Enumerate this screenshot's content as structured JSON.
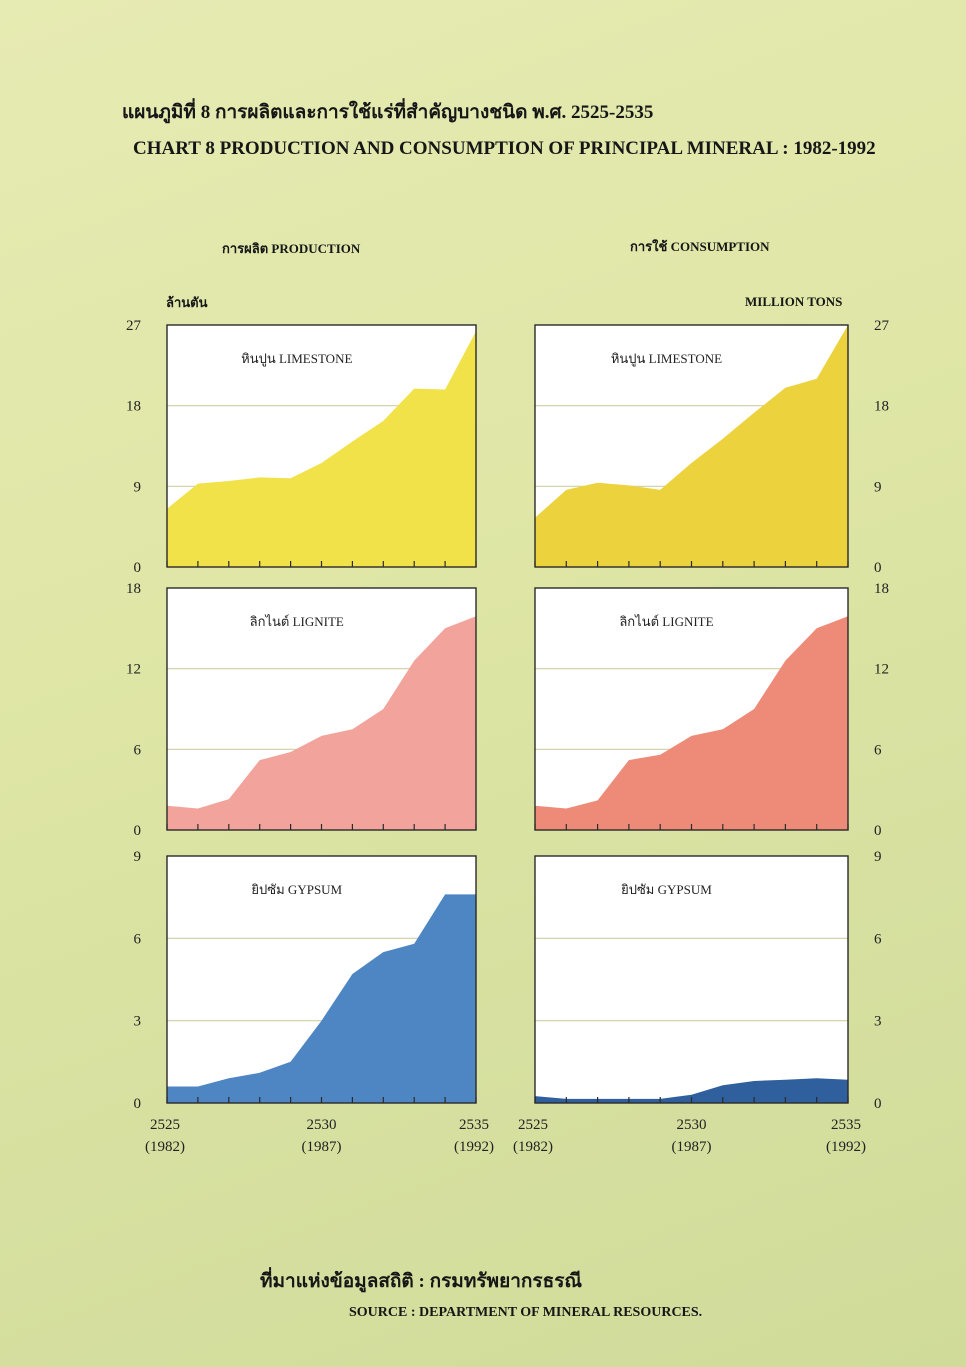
{
  "title_th": "แผนภูมิที่  8  การผลิตและการใช้แร่ที่สำคัญบางชนิด พ.ศ. 2525-2535",
  "title_en": "CHART  8  PRODUCTION AND CONSUMPTION OF PRINCIPAL MINERAL : 1982-1992",
  "production_header": "การผลิต PRODUCTION",
  "consumption_header": "การใช้ CONSUMPTION",
  "unit_th": "ล้านตัน",
  "unit_en": "MILLION TONS",
  "source_th": "ที่มาแห่งข้อมูลสถิติ : กรมทรัพยากรธรณี",
  "source_en": "SOURCE  :  DEPARTMENT OF MINERAL RESOURCES.",
  "colors": {
    "limestone_production": "#f2e24a",
    "limestone_consumption": "#ecd23c",
    "lignite_production": "#f2a49c",
    "lignite_consumption": "#ee8a78",
    "gypsum_production": "#4e86c4",
    "gypsum_consumption": "#2f5f9c",
    "gridline": "#cfd0a4"
  },
  "chart_data": [
    {
      "type": "area",
      "panel": "production",
      "x": [
        2525,
        2526,
        2527,
        2528,
        2529,
        2530,
        2531,
        2532,
        2533,
        2534,
        2535
      ],
      "values": [
        6.5,
        9.3,
        9.6,
        10.0,
        9.9,
        11.6,
        14.0,
        16.3,
        19.9,
        19.8,
        26.3
      ],
      "label": "หินปูน LIMESTONE",
      "ylim": [
        0,
        27
      ],
      "yticks": [
        0,
        9,
        18,
        27
      ],
      "xticklabels": [
        [
          "2525",
          "(1982)"
        ],
        [
          "2530",
          "(1987)"
        ],
        [
          "2535",
          "(1992)"
        ]
      ]
    },
    {
      "type": "area",
      "panel": "consumption",
      "x": [
        2525,
        2526,
        2527,
        2528,
        2529,
        2530,
        2531,
        2532,
        2533,
        2534,
        2535
      ],
      "values": [
        5.5,
        8.6,
        9.4,
        9.1,
        8.6,
        11.6,
        14.3,
        17.2,
        20.0,
        21.0,
        27.0
      ],
      "label": "หินปูน LIMESTONE",
      "ylim": [
        0,
        27
      ],
      "yticks": [
        0,
        9,
        18,
        27
      ],
      "xticklabels": [
        [
          "2525",
          "(1982)"
        ],
        [
          "2530",
          "(1987)"
        ],
        [
          "2535",
          "(1992)"
        ]
      ]
    },
    {
      "type": "area",
      "panel": "production",
      "x": [
        2525,
        2526,
        2527,
        2528,
        2529,
        2530,
        2531,
        2532,
        2533,
        2534,
        2535
      ],
      "values": [
        1.8,
        1.6,
        2.3,
        5.2,
        5.8,
        7.0,
        7.5,
        9.0,
        12.6,
        15.0,
        15.9
      ],
      "label": "ลิกไนต์ LIGNITE",
      "ylim": [
        0,
        18
      ],
      "yticks": [
        0,
        6,
        12,
        18
      ],
      "xticklabels": [
        [
          "2525",
          "(1982)"
        ],
        [
          "2530",
          "(1987)"
        ],
        [
          "2535",
          "(1992)"
        ]
      ]
    },
    {
      "type": "area",
      "panel": "consumption",
      "x": [
        2525,
        2526,
        2527,
        2528,
        2529,
        2530,
        2531,
        2532,
        2533,
        2534,
        2535
      ],
      "values": [
        1.8,
        1.6,
        2.2,
        5.2,
        5.6,
        7.0,
        7.5,
        9.0,
        12.6,
        15.0,
        15.9
      ],
      "label": "ลิกไนต์ LIGNITE",
      "ylim": [
        0,
        18
      ],
      "yticks": [
        0,
        6,
        12,
        18
      ],
      "xticklabels": [
        [
          "2525",
          "(1982)"
        ],
        [
          "2530",
          "(1987)"
        ],
        [
          "2535",
          "(1992)"
        ]
      ]
    },
    {
      "type": "area",
      "panel": "production",
      "x": [
        2525,
        2526,
        2527,
        2528,
        2529,
        2530,
        2531,
        2532,
        2533,
        2534,
        2535
      ],
      "values": [
        0.6,
        0.6,
        0.9,
        1.1,
        1.5,
        3.0,
        4.7,
        5.5,
        5.8,
        7.6,
        7.6
      ],
      "label": "ยิปซัม GYPSUM",
      "ylim": [
        0,
        9
      ],
      "yticks": [
        0,
        3,
        6,
        9
      ],
      "xticklabels": [
        [
          "2525",
          "(1982)"
        ],
        [
          "2530",
          "(1987)"
        ],
        [
          "2535",
          "(1992)"
        ]
      ]
    },
    {
      "type": "area",
      "panel": "consumption",
      "x": [
        2525,
        2526,
        2527,
        2528,
        2529,
        2530,
        2531,
        2532,
        2533,
        2534,
        2535
      ],
      "values": [
        0.25,
        0.15,
        0.15,
        0.15,
        0.15,
        0.3,
        0.65,
        0.8,
        0.85,
        0.9,
        0.85
      ],
      "label": "ยิปซัม GYPSUM",
      "ylim": [
        0,
        9
      ],
      "yticks": [
        0,
        3,
        6,
        9
      ],
      "xticklabels": [
        [
          "2525",
          "(1982)"
        ],
        [
          "2530",
          "(1987)"
        ],
        [
          "2535",
          "(1992)"
        ]
      ]
    }
  ]
}
